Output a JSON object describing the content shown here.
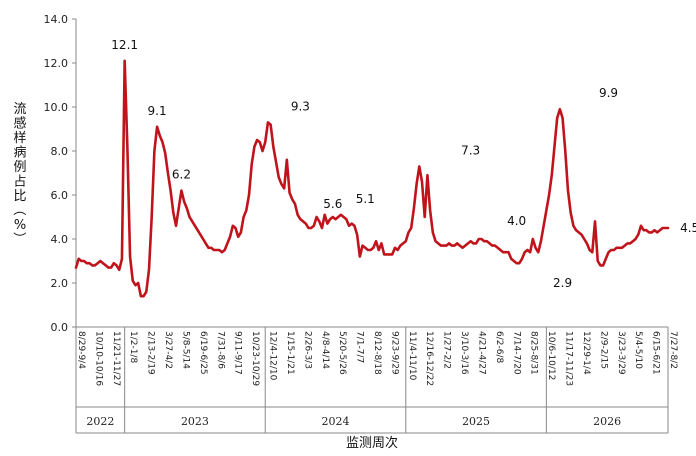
{
  "chart_data": {
    "type": "line",
    "title": "",
    "xlabel": "监测周次",
    "ylabel": "流感样病例占比（%）",
    "ylim": [
      0,
      14
    ],
    "y_ticks": [
      "0.0",
      "2.0",
      "4.0",
      "6.0",
      "8.0",
      "10.0",
      "12.0",
      "14.0"
    ],
    "grid": false,
    "line_color": "#c0141c",
    "x_tick_labels": [
      "8/29-9/4",
      "10/10-10/16",
      "11/21-11/27",
      "1/2-1/8",
      "2/13-2/19",
      "3/27-4/2",
      "5/8-5/14",
      "6/19-6/25",
      "7/31-8/6",
      "9/11-9/17",
      "10/23-10/29",
      "12/4-12/10",
      "1/15-1/21",
      "2/26-3/3",
      "4/8-4/14",
      "5/20-5/26",
      "7/1-7/7",
      "8/12-8/18",
      "9/23-9/29",
      "11/4-11/10",
      "12/16-12/22",
      "1/27-2/2",
      "3/10-3/16",
      "4/21-4/27",
      "6/2-6/8",
      "7/14-7/20",
      "8/25-8/31",
      "10/6-10/12",
      "11/17-11/23",
      "12/29-1/4",
      "2/9-2/15",
      "3/23-3/29",
      "5/4-5/10",
      "6/15-6/21",
      "7/27-8/2"
    ],
    "years": [
      {
        "label": "2022",
        "start_week": 0,
        "end_week": 18
      },
      {
        "label": "2023",
        "start_week": 18,
        "end_week": 70
      },
      {
        "label": "2024",
        "start_week": 70,
        "end_week": 122
      },
      {
        "label": "2025",
        "start_week": 122,
        "end_week": 174
      },
      {
        "label": "2026",
        "start_week": 174,
        "end_week": 223
      }
    ],
    "annotations": [
      {
        "text": "12.1",
        "week": 18,
        "value": 12.1
      },
      {
        "text": "9.1",
        "week": 30,
        "value": 9.1
      },
      {
        "text": "6.2",
        "week": 39,
        "value": 6.2
      },
      {
        "text": "9.3",
        "week": 83,
        "value": 9.3
      },
      {
        "text": "5.6",
        "week": 90,
        "value": 5.6
      },
      {
        "text": "5.1",
        "week": 107,
        "value": 5.1
      },
      {
        "text": "7.3",
        "week": 146,
        "value": 7.3
      },
      {
        "text": "4.0",
        "week": 163,
        "value": 4.0
      },
      {
        "text": "2.9",
        "week": 180,
        "value": 2.9
      },
      {
        "text": "9.9",
        "week": 197,
        "value": 9.9
      },
      {
        "text": "4.5",
        "week": 222,
        "value": 4.5
      }
    ],
    "series": [
      {
        "values": [
          2.7,
          3.1,
          3.0,
          3.0,
          2.9,
          2.9,
          2.8,
          2.8,
          2.9,
          3.0,
          2.9,
          2.8,
          2.7,
          2.7,
          2.9,
          2.8,
          2.6,
          3.1,
          12.1,
          8.2,
          3.2,
          2.1,
          1.9,
          2.0,
          1.4,
          1.4,
          1.6,
          2.6,
          5.0,
          8.0,
          9.1,
          8.7,
          8.4,
          7.9,
          7.0,
          6.2,
          5.2,
          4.6,
          5.4,
          6.2,
          5.7,
          5.4,
          5.0,
          4.8,
          4.6,
          4.4,
          4.2,
          4.0,
          3.8,
          3.6,
          3.6,
          3.5,
          3.5,
          3.5,
          3.4,
          3.5,
          3.8,
          4.1,
          4.6,
          4.5,
          4.1,
          4.3,
          5.0,
          5.3,
          6.0,
          7.4,
          8.2,
          8.5,
          8.4,
          8.0,
          8.4,
          9.3,
          9.2,
          8.2,
          7.5,
          6.8,
          6.5,
          6.3,
          7.6,
          6.1,
          5.8,
          5.6,
          5.1,
          4.9,
          4.8,
          4.7,
          4.5,
          4.5,
          4.6,
          5.0,
          4.8,
          4.5,
          5.1,
          4.7,
          4.9,
          5.0,
          4.9,
          5.0,
          5.1,
          5.0,
          4.9,
          4.6,
          4.7,
          4.6,
          4.2,
          3.2,
          3.7,
          3.6,
          3.5,
          3.5,
          3.6,
          3.9,
          3.5,
          3.8,
          3.3,
          3.3,
          3.3,
          3.3,
          3.6,
          3.5,
          3.7,
          3.8,
          3.9,
          4.3,
          4.5,
          5.4,
          6.5,
          7.3,
          6.6,
          5.0,
          6.9,
          5.3,
          4.3,
          3.9,
          3.8,
          3.7,
          3.7,
          3.7,
          3.8,
          3.7,
          3.7,
          3.8,
          3.7,
          3.6,
          3.7,
          3.8,
          3.9,
          3.8,
          3.8,
          4.0,
          4.0,
          3.9,
          3.9,
          3.8,
          3.7,
          3.7,
          3.6,
          3.5,
          3.4,
          3.4,
          3.4,
          3.1,
          3.0,
          2.9,
          2.9,
          3.1,
          3.4,
          3.5,
          3.4,
          4.0,
          3.6,
          3.4,
          3.9,
          4.6,
          5.3,
          6.0,
          6.9,
          8.2,
          9.5,
          9.9,
          9.5,
          8.0,
          6.2,
          5.2,
          4.6,
          4.4,
          4.3,
          4.2,
          4.0,
          3.8,
          3.5,
          3.4,
          4.8,
          3.0,
          2.8,
          2.8,
          3.1,
          3.4,
          3.5,
          3.5,
          3.6,
          3.6,
          3.6,
          3.7,
          3.8,
          3.8,
          3.9,
          4.0,
          4.2,
          4.6,
          4.4,
          4.4,
          4.3,
          4.3,
          4.4,
          4.3,
          4.4,
          4.5,
          4.5,
          4.5
        ]
      }
    ]
  }
}
